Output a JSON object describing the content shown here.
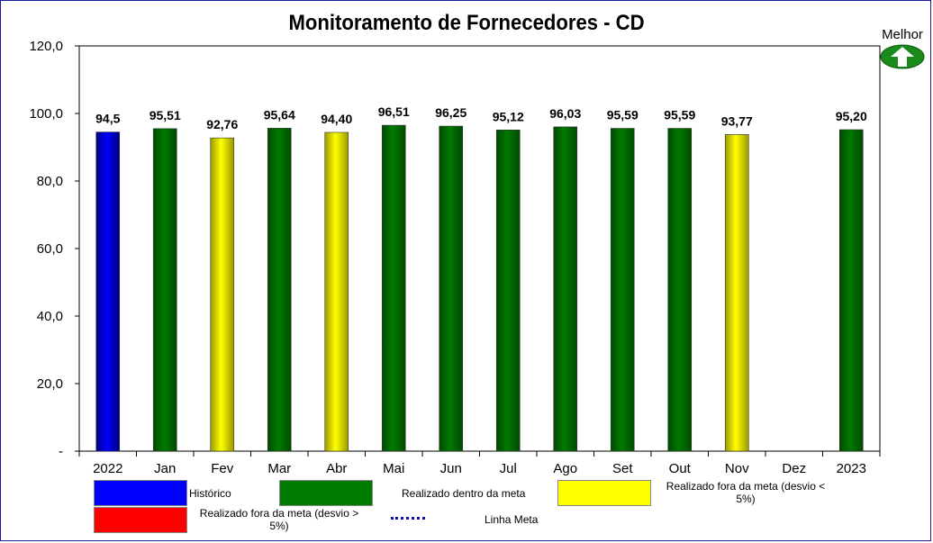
{
  "chart_data": {
    "type": "bar",
    "title": "Monitoramento de Fornecedores - CD",
    "categories": [
      "2022",
      "Jan",
      "Fev",
      "Mar",
      "Abr",
      "Mai",
      "Jun",
      "Jul",
      "Ago",
      "Set",
      "Out",
      "Nov",
      "Dez",
      "2023"
    ],
    "values": [
      94.5,
      95.51,
      92.76,
      95.64,
      94.4,
      96.51,
      96.25,
      95.12,
      96.03,
      95.59,
      95.59,
      93.77,
      null,
      95.2
    ],
    "value_labels": [
      "94,5",
      "95,51",
      "92,76",
      "95,64",
      "94,40",
      "96,51",
      "96,25",
      "95,12",
      "96,03",
      "95,59",
      "95,59",
      "93,77",
      "",
      "95,20"
    ],
    "bar_status": [
      "historico",
      "dentro",
      "fora_menor",
      "dentro",
      "fora_menor",
      "dentro",
      "dentro",
      "dentro",
      "dentro",
      "dentro",
      "dentro",
      "fora_menor",
      "",
      "dentro"
    ],
    "ylim": [
      0,
      120
    ],
    "yticks": [
      0,
      20,
      40,
      60,
      80,
      100,
      120
    ],
    "ytick_labels": [
      "-",
      "20,0",
      "40,0",
      "60,0",
      "80,0",
      "100,0",
      "120,0"
    ],
    "grid": false,
    "legend_placement": "bottom"
  },
  "indicator": {
    "label": "Melhor",
    "icon": "up-arrow-icon"
  },
  "legend": {
    "historico": {
      "label": "Histórico",
      "color": "#0000ff"
    },
    "dentro": {
      "label": "Realizado dentro da meta",
      "color": "#007a00"
    },
    "fora_menor": {
      "label": "Realizado fora da meta (desvio < 5%)",
      "color": "#ffff00"
    },
    "fora_maior": {
      "label": "Realizado fora da meta (desvio > 5%)",
      "color": "#ff0000"
    },
    "meta": {
      "label": "Linha Meta",
      "color": "#1010c0"
    }
  },
  "colors": {
    "historico_dark": "#000080",
    "dentro_dark": "#004a00",
    "fora_menor_dark": "#9a9a00"
  }
}
